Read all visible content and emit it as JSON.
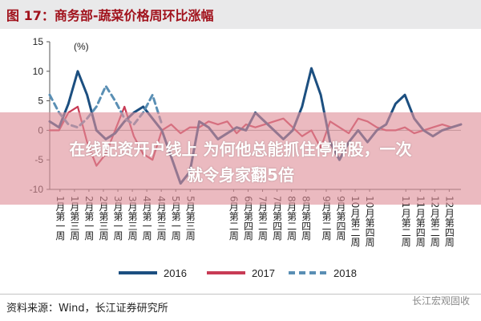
{
  "figure_title": "图 17：商务部-蔬菜价格周环比涨幅",
  "overlay": {
    "line1": "在线配资开户线上 为何他总能抓住停牌股，一次",
    "line2": "就令身家翻5倍"
  },
  "source": "资料来源：Wind，长江证券研究所",
  "watermark": "长江宏观固收",
  "colors": {
    "s2016": "#1c4f80",
    "s2017": "#c83b55",
    "s2018": "#5a8fb4",
    "accent": "#a1121c"
  },
  "chart_data": {
    "type": "line",
    "unit": "(%)",
    "ylim": [
      -10,
      15
    ],
    "yticks": [
      -10,
      -5,
      0,
      5,
      10,
      15
    ],
    "x_labels": [
      "1月第一周",
      "1月第三周",
      "2月第一周",
      "2月第三周",
      "3月第一周",
      "3月第三周",
      "4月第一周",
      "4月第三周",
      "5月第一周",
      "5月第三周",
      "6月第二周",
      "6月第四周",
      "7月第二周",
      "7月第四周",
      "8月第二周",
      "8月第四周",
      "9月第二周",
      "9月第四周",
      "10月第二周",
      "10月第四周",
      "11月第二周",
      "11月第四周",
      "12月第二周",
      "12月第四周"
    ],
    "grid": false,
    "legend_position": "bottom",
    "series": [
      {
        "name": "2016",
        "values": [
          1.5,
          0.5,
          4.5,
          10,
          6,
          0,
          -1.5,
          -0.5,
          1.5,
          3,
          4,
          2,
          0,
          -4.5,
          -9,
          -7,
          1.5,
          0.5,
          -1.5,
          -0.5,
          0.5,
          0,
          3,
          1.5,
          0,
          -1.5,
          0,
          4,
          10.5,
          6,
          -2,
          -5,
          -2,
          0,
          -2,
          0,
          1,
          4.5,
          6,
          2,
          0,
          -1,
          0,
          0.5,
          1
        ]
      },
      {
        "name": "2017",
        "values": [
          0,
          0,
          3,
          4,
          -2,
          -6,
          -4,
          0,
          4,
          -1,
          -4,
          -5,
          0,
          1,
          -0.5,
          0.5,
          0.5,
          1.5,
          1,
          1.5,
          -0.5,
          1,
          0.5,
          1,
          1.5,
          2,
          0.5,
          -1,
          0,
          -3,
          1.5,
          0.5,
          -0.5,
          2,
          1.5,
          0.5,
          0,
          0,
          0.5,
          -0.5,
          0,
          0.5,
          1,
          0.5,
          1
        ]
      },
      {
        "name": "2018",
        "values": [
          6,
          3,
          1,
          0.5,
          2,
          4,
          7.5,
          5,
          2,
          1,
          3,
          6,
          1
        ]
      }
    ]
  }
}
